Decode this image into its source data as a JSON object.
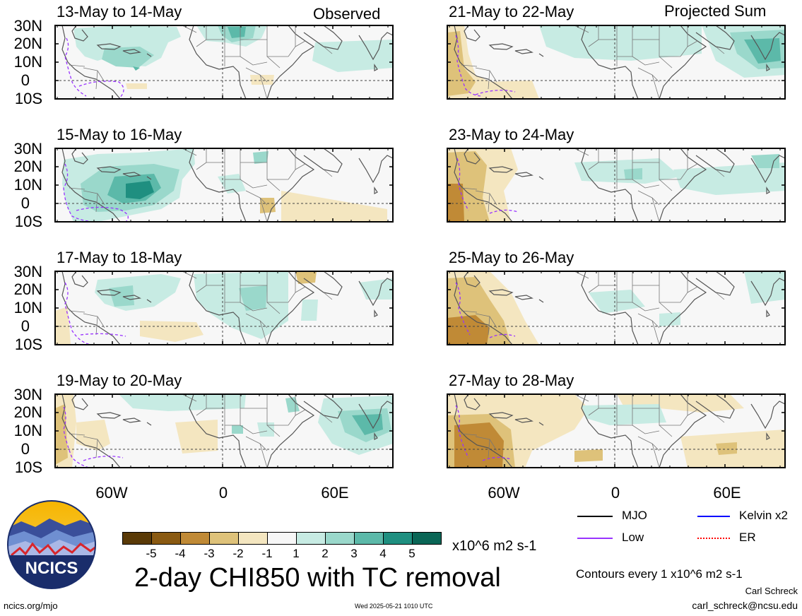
{
  "columns": {
    "left": "Observed",
    "right": "Projected Sum"
  },
  "panels": {
    "left": [
      "13-May to 14-May",
      "15-May to 16-May",
      "17-May to 18-May",
      "19-May to 20-May"
    ],
    "right": [
      "21-May to 22-May",
      "23-May to 24-May",
      "25-May to 26-May",
      "27-May to 28-May"
    ]
  },
  "lat_labels": [
    "30N",
    "20N",
    "10N",
    "0",
    "10S"
  ],
  "lon_labels": [
    "60W",
    "0",
    "60E"
  ],
  "colorbar": {
    "colors": [
      "#5a3a07",
      "#8a5a12",
      "#c08a36",
      "#dec27a",
      "#f4e6c0",
      "#f7f7f7",
      "#c7ebe3",
      "#9ad8cb",
      "#5cb9a9",
      "#1f8f80",
      "#0a6656"
    ],
    "ticks": [
      "-5",
      "-4",
      "-3",
      "-2",
      "-1",
      "1",
      "2",
      "3",
      "4",
      "5"
    ],
    "units": "x10^6 m2 s-1"
  },
  "main_title": "2-day CHI850 with TC removal",
  "logo_text": "NCICS",
  "legend": {
    "items": [
      {
        "label": "MJO",
        "color": "#000000",
        "style": "solid"
      },
      {
        "label": "Kelvin x2",
        "color": "#0000ff",
        "style": "solid"
      },
      {
        "label": "Low",
        "color": "#9933ff",
        "style": "solid"
      },
      {
        "label": "ER",
        "color": "#ff0000",
        "style": "dotted"
      }
    ]
  },
  "contour_note": "Contours every 1 x10^6 m2 s-1",
  "author": "Carl Schreck",
  "email": "carl_schreck@ncsu.edu",
  "url": "ncics.org/mjo",
  "timestamp": "Wed 2025-05-21 1010 UTC"
}
